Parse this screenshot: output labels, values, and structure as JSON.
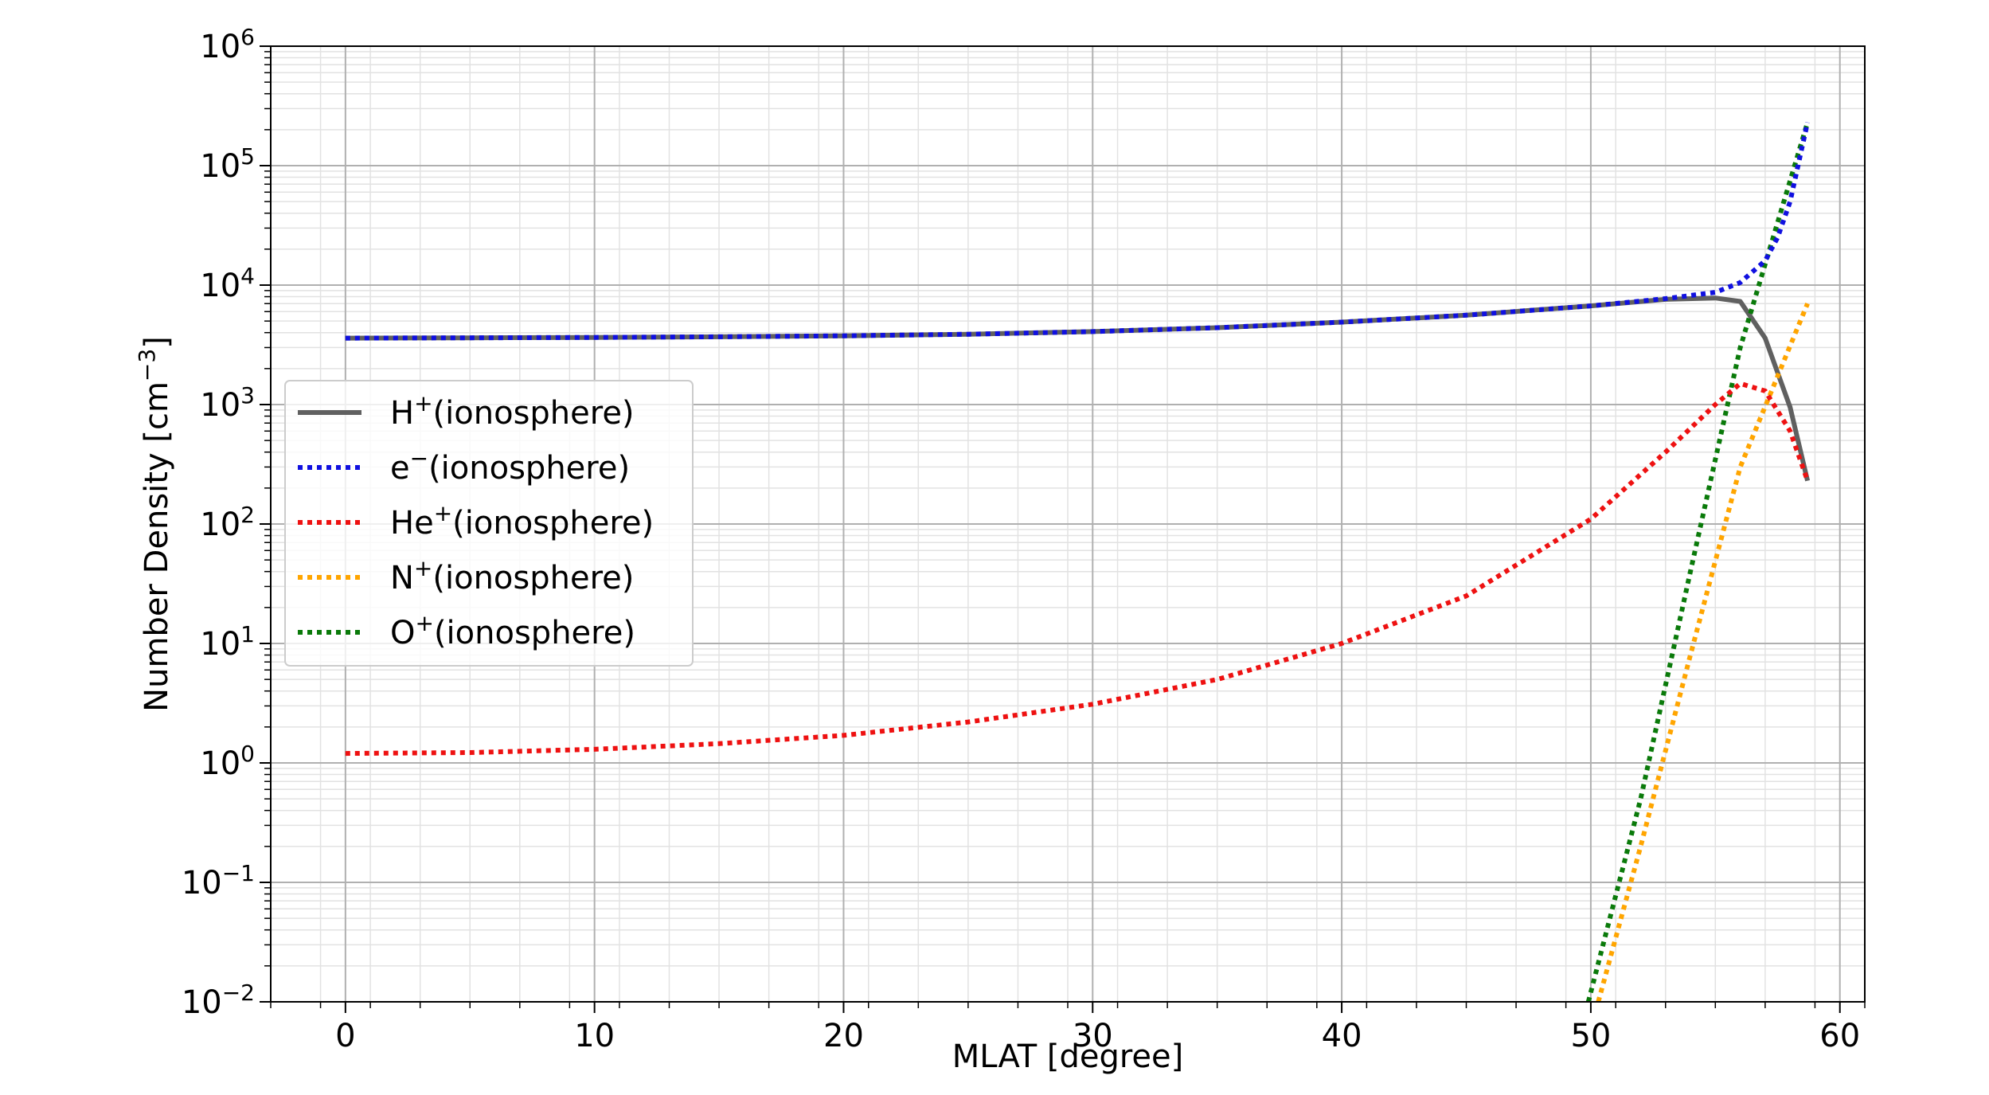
{
  "chart_data": {
    "type": "line",
    "xlabel": "MLAT [degree]",
    "ylabel": "Number Density [cm",
    "ylabel_unit_exp": "−3",
    "ylabel_close": "]",
    "xlim": [
      -3,
      61
    ],
    "ylim": [
      0.01,
      1000000
    ],
    "yscale": "log",
    "grid": true,
    "legend_placement": "center-left",
    "xticks": [
      {
        "v": 0,
        "label": "0"
      },
      {
        "v": 10,
        "label": "10"
      },
      {
        "v": 20,
        "label": "20"
      },
      {
        "v": 30,
        "label": "30"
      },
      {
        "v": 40,
        "label": "40"
      },
      {
        "v": 50,
        "label": "50"
      },
      {
        "v": 60,
        "label": "60"
      }
    ],
    "yticks": [
      {
        "e": -2,
        "base": "10",
        "exp": "−2"
      },
      {
        "e": -1,
        "base": "10",
        "exp": "−1"
      },
      {
        "e": 0,
        "base": "10",
        "exp": "0"
      },
      {
        "e": 1,
        "base": "10",
        "exp": "1"
      },
      {
        "e": 2,
        "base": "10",
        "exp": "2"
      },
      {
        "e": 3,
        "base": "10",
        "exp": "3"
      },
      {
        "e": 4,
        "base": "10",
        "exp": "4"
      },
      {
        "e": 5,
        "base": "10",
        "exp": "5"
      },
      {
        "e": 6,
        "base": "10",
        "exp": "6"
      }
    ],
    "series": [
      {
        "name": "H",
        "name_sup": "+",
        "name_suffix": "(ionosphere)",
        "color": "#606060",
        "style": "solid",
        "x": [
          0,
          5,
          10,
          15,
          20,
          25,
          30,
          35,
          40,
          45,
          50,
          53,
          55,
          56,
          57,
          58,
          58.7
        ],
        "y": [
          3600,
          3620,
          3650,
          3690,
          3760,
          3880,
          4080,
          4400,
          4900,
          5600,
          6700,
          7600,
          7800,
          7300,
          3600,
          950,
          230
        ]
      },
      {
        "name": "e",
        "name_sup": "−",
        "name_suffix": "(ionosphere)",
        "color": "#1010e0",
        "style": "dotted",
        "x": [
          0,
          5,
          10,
          15,
          20,
          25,
          30,
          35,
          40,
          45,
          50,
          53,
          55,
          56,
          57,
          57.5,
          58,
          58.7
        ],
        "y": [
          3600,
          3620,
          3650,
          3690,
          3760,
          3880,
          4080,
          4400,
          4900,
          5600,
          6700,
          7700,
          8700,
          10500,
          16000,
          25000,
          50000,
          230000
        ]
      },
      {
        "name": "He",
        "name_sup": "+",
        "name_suffix": "(ionosphere)",
        "color": "#ee1111",
        "style": "dotted",
        "x": [
          0,
          5,
          10,
          15,
          20,
          25,
          30,
          35,
          40,
          45,
          50,
          53,
          55,
          56,
          57,
          58,
          58.7
        ],
        "y": [
          1.2,
          1.22,
          1.3,
          1.45,
          1.7,
          2.2,
          3.1,
          5.0,
          10.0,
          25,
          110,
          400,
          1000,
          1500,
          1300,
          600,
          230
        ]
      },
      {
        "name": "N",
        "name_sup": "+",
        "name_suffix": "(ionosphere)",
        "color": "#ffa500",
        "style": "dotted",
        "x": [
          50.3,
          52,
          54,
          56,
          58.7
        ],
        "y": [
          0.01,
          0.2,
          8,
          300,
          7000
        ]
      },
      {
        "name": "O",
        "name_sup": "+",
        "name_suffix": "(ionosphere)",
        "color": "#0a7a0a",
        "style": "dotted",
        "x": [
          49.9,
          52,
          54,
          56,
          58.7
        ],
        "y": [
          0.01,
          0.5,
          40,
          3000,
          230000
        ]
      }
    ]
  }
}
